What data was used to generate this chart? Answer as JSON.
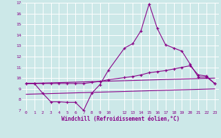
{
  "bg_color": "#cce8e8",
  "grid_color": "#ffffff",
  "line_color": "#880088",
  "xlabel": "Windchill (Refroidissement éolien,°C)",
  "xlim": [
    -0.5,
    23.5
  ],
  "ylim": [
    7,
    17
  ],
  "yticks": [
    7,
    8,
    9,
    10,
    11,
    12,
    13,
    14,
    15,
    16,
    17
  ],
  "xticks": [
    0,
    1,
    2,
    3,
    4,
    5,
    6,
    7,
    8,
    9,
    10,
    12,
    13,
    14,
    15,
    16,
    17,
    18,
    19,
    20,
    21,
    22,
    23
  ],
  "line1_x": [
    0,
    1,
    2,
    3,
    4,
    5,
    6,
    7,
    8,
    9,
    10,
    12,
    13,
    14,
    15,
    16,
    17,
    18,
    19,
    20,
    21,
    22,
    23
  ],
  "line1_y": [
    9.5,
    9.5,
    8.6,
    7.8,
    7.8,
    7.75,
    7.75,
    7.0,
    8.6,
    9.4,
    10.7,
    12.8,
    13.2,
    14.4,
    16.9,
    14.6,
    13.1,
    12.8,
    12.5,
    11.3,
    10.1,
    10.1,
    9.5
  ],
  "line2_x": [
    0,
    1,
    2,
    3,
    4,
    5,
    6,
    7,
    8,
    9,
    10,
    12,
    13,
    14,
    15,
    16,
    17,
    18,
    19,
    20,
    21,
    22,
    23
  ],
  "line2_y": [
    9.5,
    9.5,
    9.5,
    9.5,
    9.5,
    9.5,
    9.5,
    9.5,
    9.6,
    9.7,
    9.85,
    10.05,
    10.15,
    10.3,
    10.5,
    10.6,
    10.7,
    10.85,
    11.0,
    11.15,
    10.3,
    10.2,
    9.5
  ],
  "line3_x": [
    0,
    23
  ],
  "line3_y": [
    9.5,
    10.0
  ],
  "line4_x": [
    0,
    23
  ],
  "line4_y": [
    8.5,
    9.0
  ]
}
